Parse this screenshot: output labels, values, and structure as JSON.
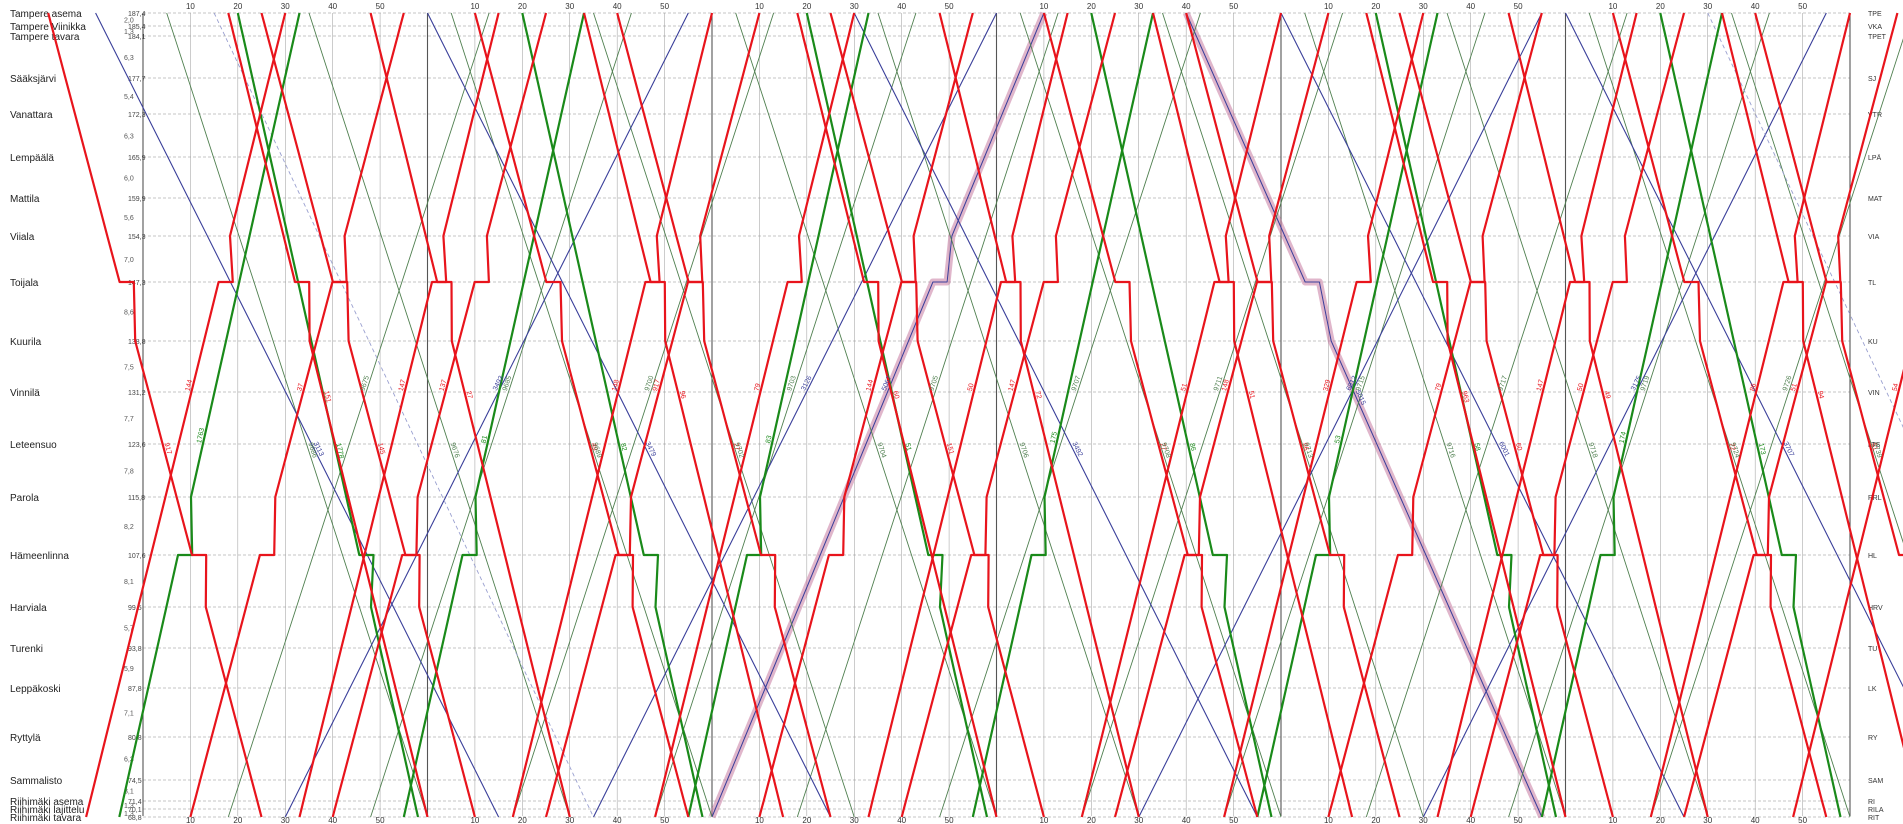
{
  "stations": [
    {
      "name": "Tampere asema",
      "km": "187,4",
      "code": "TPE",
      "dist": ""
    },
    {
      "name": "Tampere Viinikka",
      "km": "185,4",
      "code": "VKA",
      "dist": "2,0"
    },
    {
      "name": "Tampere tavara",
      "km": "184,1",
      "code": "TPET",
      "dist": "1,3"
    },
    {
      "name": "Sääksjärvi",
      "km": "177,7",
      "code": "SJ",
      "dist": "6,3"
    },
    {
      "name": "Vanattara",
      "km": "172,3",
      "code": "VTR",
      "dist": "5,4"
    },
    {
      "name": "Lempäälä",
      "km": "165,9",
      "code": "LPÄ",
      "dist": "6,3"
    },
    {
      "name": "Mattila",
      "km": "159,9",
      "code": "MAT",
      "dist": "6,0"
    },
    {
      "name": "Viiala",
      "km": "154,3",
      "code": "VIA",
      "dist": "5,6"
    },
    {
      "name": "Toijala",
      "km": "147,3",
      "code": "TL",
      "dist": "7,0"
    },
    {
      "name": "Kuurila",
      "km": "138,8",
      "code": "KU",
      "dist": "8,6"
    },
    {
      "name": "Vinnilä",
      "km": "131,2",
      "code": "VIN",
      "dist": "7,5"
    },
    {
      "name": "Leteensuo",
      "km": "123,6",
      "code": "LTS",
      "dist": "7,7"
    },
    {
      "name": "Parola",
      "km": "115,8",
      "code": "PRL",
      "dist": "7,8"
    },
    {
      "name": "Hämeenlinna",
      "km": "107,6",
      "code": "HL",
      "dist": "8,2"
    },
    {
      "name": "Harviala",
      "km": "99,5",
      "code": "HRV",
      "dist": "8,1"
    },
    {
      "name": "Turenki",
      "km": "93,8",
      "code": "TU",
      "dist": "5,7"
    },
    {
      "name": "Leppäkoski",
      "km": "87,8",
      "code": "LK",
      "dist": "5,9"
    },
    {
      "name": "Ryttylä",
      "km": "80,8",
      "code": "RY",
      "dist": "7,1"
    },
    {
      "name": "Sammalisto",
      "km": "74,5",
      "code": "SAM",
      "dist": "6,3"
    },
    {
      "name": "Riihimäki asema",
      "km": "71,4",
      "code": "RI",
      "dist": "3,1"
    },
    {
      "name": "Riihimäki lajittelu",
      "km": "70,1",
      "code": "RILA",
      "dist": "1,3"
    },
    {
      "name": "Riihimäki tavara",
      "km": "68,8",
      "code": "RIT",
      "dist": "1,3"
    }
  ],
  "minute_labels": [
    "10",
    "20",
    "30",
    "40",
    "50"
  ],
  "colors": {
    "background": "#ffffff",
    "passenger_commuter": "#e8141c",
    "passenger_long": "#1a8a1a",
    "freight": "#3a3f9a",
    "freight_light": "#9aa0d0",
    "green_thin": "#4f7f4f",
    "highlight": "#c77aa0",
    "grid_hour": "#555555",
    "grid_minor": "#9a9a9a",
    "station_line": "#8a8a8a"
  },
  "trains": {
    "red": [
      "917",
      "37",
      "145",
      "137",
      "49",
      "917",
      "27",
      "144",
      "151",
      "147",
      "27",
      "148",
      "96",
      "79",
      "60",
      "50",
      "72",
      "51",
      "51",
      "329",
      "963",
      "147",
      "49",
      "86",
      "94",
      "54",
      "29",
      "57",
      "149",
      "173",
      "174",
      "189",
      "22",
      "140",
      "34",
      "160",
      "11",
      "71",
      "47",
      "146",
      "87",
      "185",
      "72",
      "94",
      "141",
      "183",
      "54"
    ],
    "green": [
      "1763",
      "1778",
      "81",
      "82",
      "83",
      "51",
      "175",
      "86",
      "53",
      "58",
      "174",
      "173",
      "85",
      "89",
      "76",
      "78",
      "88",
      "66",
      "68",
      "53",
      "88"
    ],
    "green_thin": [
      "9686",
      "9675",
      "9676",
      "9685",
      "9689",
      "9700",
      "9702",
      "9703",
      "9704",
      "9705",
      "9706",
      "9707",
      "9708",
      "9711",
      "9713",
      "9715",
      "9716",
      "9717",
      "9718",
      "9719",
      "9724",
      "9726",
      "9739",
      "1757",
      "1787",
      "1780",
      "1782",
      "1750",
      "1784"
    ],
    "blue": [
      "3113",
      "3493",
      "3479",
      "3126",
      "3492",
      "6012",
      "6001",
      "3175",
      "3707",
      "3177",
      "3707",
      "3135",
      "3109",
      "3157",
      "3136",
      "20318",
      "3180",
      "3121",
      "6015",
      "3136",
      "3153"
    ],
    "highlight": [
      "5067",
      "5102",
      "5015"
    ]
  }
}
